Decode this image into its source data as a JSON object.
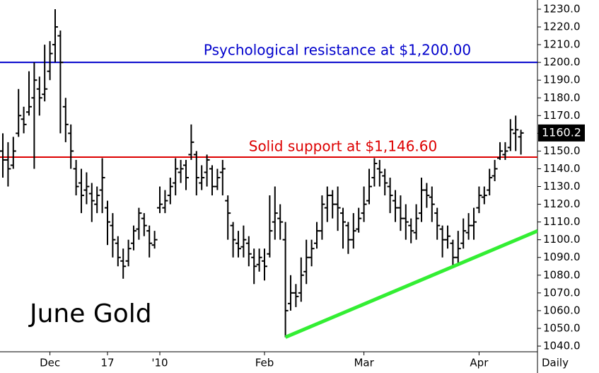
{
  "chart_data": {
    "type": "ohlc",
    "title": "June Gold",
    "period": "Daily",
    "categories": [
      null,
      null,
      null,
      null,
      null,
      null,
      null,
      null,
      null,
      "Dec",
      null,
      null,
      null,
      null,
      null,
      null,
      null,
      null,
      null,
      null,
      "17",
      null,
      null,
      null,
      null,
      null,
      null,
      null,
      null,
      null,
      "'10",
      null,
      null,
      null,
      null,
      null,
      null,
      null,
      null,
      null,
      null,
      null,
      null,
      null,
      null,
      null,
      null,
      null,
      null,
      null,
      "Feb",
      null,
      null,
      null,
      null,
      null,
      null,
      null,
      null,
      null,
      null,
      null,
      null,
      null,
      null,
      null,
      null,
      null,
      null,
      "Mar",
      null,
      null,
      null,
      null,
      null,
      null,
      null,
      null,
      null,
      null,
      null,
      null,
      null,
      null,
      null,
      null,
      null,
      null,
      null,
      null,
      null,
      "Apr",
      null,
      null,
      null,
      null,
      null,
      null,
      null,
      null
    ],
    "open": [
      1150,
      1145,
      1142,
      1160,
      1168,
      1172,
      1180,
      1185,
      1182,
      1195,
      1210,
      1215,
      1175,
      1160,
      1140,
      1132,
      1128,
      1126,
      1120,
      1128,
      1118,
      1108,
      1098,
      1088,
      1088,
      1098,
      1106,
      1112,
      1105,
      1097,
      1118,
      1118,
      1125,
      1132,
      1138,
      1142,
      1148,
      1148,
      1132,
      1138,
      1140,
      1130,
      1138,
      1122,
      1108,
      1098,
      1096,
      1098,
      1090,
      1086,
      1088,
      1092,
      1110,
      1112,
      1100,
      1064,
      1070,
      1070,
      1082,
      1090,
      1098,
      1105,
      1118,
      1125,
      1120,
      1115,
      1108,
      1100,
      1106,
      1115,
      1122,
      1135,
      1140,
      1136,
      1130,
      1122,
      1118,
      1112,
      1108,
      1104,
      1115,
      1128,
      1124,
      1115,
      1106,
      1100,
      1098,
      1090,
      1098,
      1104,
      1108,
      1118,
      1124,
      1128,
      1136,
      1146,
      1148,
      1152,
      1160,
      1158
    ],
    "high": [
      1160,
      1155,
      1158,
      1185,
      1175,
      1195,
      1200,
      1192,
      1210,
      1212,
      1230,
      1218,
      1180,
      1165,
      1145,
      1140,
      1138,
      1132,
      1130,
      1146,
      1122,
      1115,
      1102,
      1095,
      1100,
      1108,
      1118,
      1115,
      1108,
      1105,
      1130,
      1128,
      1135,
      1146,
      1145,
      1145,
      1165,
      1150,
      1142,
      1148,
      1142,
      1140,
      1145,
      1125,
      1110,
      1105,
      1108,
      1102,
      1095,
      1095,
      1095,
      1125,
      1130,
      1120,
      1110,
      1080,
      1075,
      1090,
      1100,
      1100,
      1110,
      1125,
      1130,
      1128,
      1130,
      1118,
      1110,
      1115,
      1118,
      1130,
      1140,
      1146,
      1145,
      1140,
      1135,
      1128,
      1125,
      1120,
      1112,
      1120,
      1135,
      1132,
      1130,
      1118,
      1108,
      1108,
      1100,
      1105,
      1112,
      1115,
      1118,
      1130,
      1130,
      1140,
      1145,
      1155,
      1155,
      1168,
      1170,
      1162
    ],
    "low": [
      1135,
      1130,
      1140,
      1158,
      1160,
      1170,
      1140,
      1170,
      1178,
      1190,
      1200,
      1160,
      1155,
      1140,
      1125,
      1115,
      1120,
      1110,
      1115,
      1115,
      1097,
      1090,
      1085,
      1078,
      1085,
      1094,
      1100,
      1102,
      1090,
      1095,
      1115,
      1115,
      1120,
      1125,
      1132,
      1128,
      1145,
      1125,
      1128,
      1130,
      1125,
      1128,
      1125,
      1100,
      1090,
      1090,
      1090,
      1085,
      1075,
      1082,
      1077,
      1090,
      1100,
      1100,
      1045,
      1060,
      1062,
      1065,
      1075,
      1085,
      1095,
      1100,
      1110,
      1112,
      1105,
      1095,
      1092,
      1095,
      1104,
      1110,
      1120,
      1130,
      1130,
      1125,
      1115,
      1110,
      1105,
      1100,
      1098,
      1100,
      1110,
      1118,
      1110,
      1100,
      1090,
      1095,
      1085,
      1087,
      1095,
      1100,
      1100,
      1115,
      1120,
      1125,
      1133,
      1145,
      1145,
      1150,
      1150,
      1148
    ],
    "close": [
      1145,
      1140,
      1150,
      1170,
      1165,
      1175,
      1190,
      1180,
      1185,
      1205,
      1220,
      1200,
      1165,
      1150,
      1130,
      1125,
      1130,
      1122,
      1125,
      1135,
      1110,
      1100,
      1090,
      1085,
      1095,
      1105,
      1115,
      1108,
      1098,
      1100,
      1120,
      1122,
      1130,
      1140,
      1140,
      1135,
      1155,
      1135,
      1135,
      1145,
      1130,
      1135,
      1140,
      1115,
      1100,
      1095,
      1100,
      1092,
      1085,
      1090,
      1085,
      1105,
      1115,
      1110,
      1060,
      1070,
      1068,
      1080,
      1090,
      1095,
      1105,
      1120,
      1125,
      1120,
      1118,
      1110,
      1100,
      1105,
      1112,
      1120,
      1130,
      1143,
      1138,
      1132,
      1125,
      1118,
      1112,
      1110,
      1105,
      1112,
      1128,
      1125,
      1120,
      1108,
      1100,
      1102,
      1090,
      1095,
      1105,
      1108,
      1110,
      1125,
      1125,
      1135,
      1140,
      1150,
      1150,
      1162,
      1162,
      1160.2
    ],
    "color": "#000000",
    "last_price": 1160.2,
    "ylim": [
      1040,
      1230
    ],
    "yticks": [
      {
        "value": 1230,
        "label": "1230.0"
      },
      {
        "value": 1220,
        "label": "1220.0"
      },
      {
        "value": 1210,
        "label": "1210.0"
      },
      {
        "value": 1200,
        "label": "1200.0"
      },
      {
        "value": 1190,
        "label": "1190.0"
      },
      {
        "value": 1180,
        "label": "1180.0"
      },
      {
        "value": 1170,
        "label": "1170.0"
      },
      {
        "value": 1160,
        "label": "1160.0"
      },
      {
        "value": 1150,
        "label": "1150.0"
      },
      {
        "value": 1140,
        "label": "1140.0"
      },
      {
        "value": 1130,
        "label": "1130.0"
      },
      {
        "value": 1120,
        "label": "1120.0"
      },
      {
        "value": 1110,
        "label": "1110.0"
      },
      {
        "value": 1100,
        "label": "1100.0"
      },
      {
        "value": 1090,
        "label": "1090.0"
      },
      {
        "value": 1080,
        "label": "1080.0"
      },
      {
        "value": 1070,
        "label": "1070.0"
      },
      {
        "value": 1060,
        "label": "1060.0"
      },
      {
        "value": 1050,
        "label": "1050.0"
      },
      {
        "value": 1040,
        "label": "1040.0"
      }
    ],
    "hlines": [
      {
        "value": 1200,
        "color": "#0000cc",
        "label": "Psychological resistance at $1,200.00"
      },
      {
        "value": 1146.6,
        "color": "#dd0000",
        "label": "Solid support at $1,146.60"
      }
    ],
    "trendline": {
      "x": [
        54,
        102.2
      ],
      "values": [
        1045,
        1105
      ],
      "color": "#33ee33"
    }
  }
}
